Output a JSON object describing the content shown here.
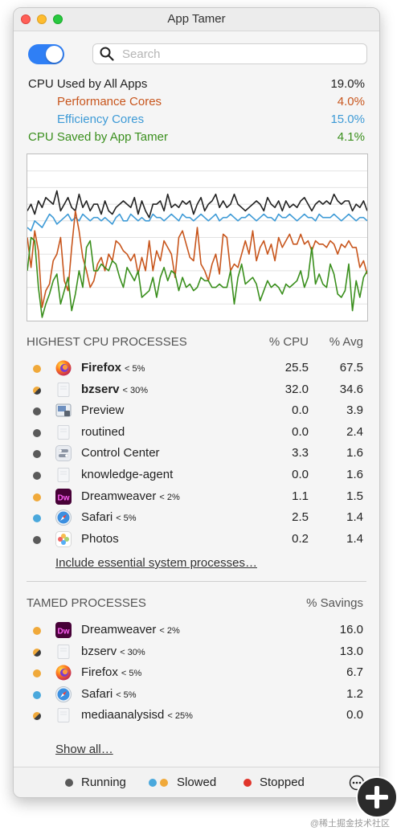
{
  "window": {
    "title": "App Tamer"
  },
  "search": {
    "placeholder": "Search"
  },
  "cpu_stats": {
    "all_apps": {
      "label": "CPU Used by All Apps",
      "value": "19.0%",
      "color": "#222222"
    },
    "performance": {
      "label": "Performance Cores",
      "value": "4.0%",
      "color": "#c8561d"
    },
    "efficiency": {
      "label": "Efficiency Cores",
      "value": "15.0%",
      "color": "#3d9ad6"
    },
    "saved": {
      "label": "CPU Saved by App Tamer",
      "value": "4.1%",
      "color": "#3a8f1d"
    }
  },
  "chart_data": {
    "type": "line",
    "series": [
      {
        "color": "#222222",
        "values": [
          66,
          70,
          64,
          72,
          68,
          74,
          72,
          70,
          78,
          66,
          70,
          74,
          68,
          66,
          76,
          68,
          72,
          66,
          70,
          70,
          64,
          72,
          66,
          64,
          68,
          70,
          72,
          70,
          68,
          74,
          64,
          72,
          66,
          62,
          70,
          70,
          72,
          66,
          76,
          68,
          70,
          68,
          72,
          70,
          72,
          64,
          70,
          74,
          66,
          70,
          72,
          76,
          68,
          72,
          68,
          70,
          76,
          70,
          68,
          66,
          68,
          70,
          72,
          70,
          66,
          74,
          70,
          68,
          72,
          66,
          72,
          68,
          70,
          68,
          72,
          74,
          70,
          66,
          70,
          72,
          70,
          72,
          70,
          76,
          72,
          70,
          72,
          72,
          66,
          70,
          68,
          72,
          66
        ]
      },
      {
        "color": "#3d9ad6",
        "values": [
          56,
          54,
          60,
          58,
          56,
          60,
          64,
          62,
          58,
          60,
          62,
          64,
          60,
          62,
          60,
          64,
          62,
          60,
          62,
          62,
          60,
          62,
          60,
          58,
          62,
          64,
          60,
          60,
          64,
          62,
          60,
          62,
          60,
          60,
          64,
          62,
          62,
          60,
          62,
          64,
          62,
          60,
          64,
          62,
          62,
          60,
          62,
          64,
          62,
          60,
          62,
          64,
          60,
          62,
          62,
          64,
          62,
          60,
          62,
          62,
          64,
          62,
          60,
          62,
          64,
          62,
          62,
          60,
          64,
          62,
          62,
          64,
          62,
          60,
          62,
          64,
          62,
          62,
          60,
          64,
          62,
          62,
          62,
          64,
          62,
          60,
          62,
          64,
          62,
          60,
          62,
          62,
          60
        ]
      },
      {
        "color": "#c8561d",
        "values": [
          50,
          32,
          54,
          42,
          8,
          18,
          22,
          36,
          40,
          50,
          24,
          18,
          44,
          66,
          54,
          38,
          30,
          20,
          24,
          34,
          38,
          30,
          40,
          36,
          48,
          46,
          42,
          40,
          36,
          40,
          28,
          38,
          30,
          48,
          30,
          42,
          36,
          48,
          44,
          40,
          26,
          50,
          54,
          46,
          38,
          36,
          56,
          34,
          30,
          24,
          34,
          40,
          28,
          52,
          50,
          30,
          34,
          32,
          40,
          48,
          40,
          54,
          36,
          44,
          48,
          40,
          46,
          36,
          50,
          44,
          48,
          52,
          46,
          46,
          52,
          46,
          48,
          42,
          48,
          46,
          46,
          44,
          48,
          46,
          40,
          46,
          44,
          48,
          44,
          44,
          32,
          36,
          28
        ]
      },
      {
        "color": "#3a8f1d",
        "values": [
          30,
          50,
          48,
          20,
          2,
          10,
          16,
          24,
          28,
          10,
          18,
          26,
          6,
          16,
          30,
          20,
          44,
          48,
          30,
          30,
          34,
          32,
          30,
          36,
          34,
          26,
          20,
          32,
          28,
          24,
          30,
          14,
          16,
          18,
          26,
          14,
          26,
          32,
          24,
          30,
          28,
          18,
          26,
          20,
          22,
          18,
          20,
          26,
          24,
          24,
          20,
          20,
          22,
          20,
          20,
          30,
          10,
          26,
          34,
          22,
          24,
          26,
          22,
          12,
          18,
          24,
          20,
          22,
          20,
          16,
          22,
          20,
          22,
          24,
          30,
          20,
          26,
          44,
          22,
          28,
          22,
          20,
          34,
          28,
          16,
          14,
          18,
          34,
          6,
          24,
          14,
          26,
          30
        ]
      }
    ],
    "ylim": [
      0,
      100
    ],
    "grid": true
  },
  "highest_cpu": {
    "header": "HIGHEST CPU PROCESSES",
    "col_cpu": "% CPU",
    "col_avg": "% Avg",
    "rows": [
      {
        "name": "Firefox",
        "limit": "< 5%",
        "cpu": "25.5",
        "avg": "67.5",
        "bold": true,
        "status": "slowed-orange",
        "icon": "firefox-icon"
      },
      {
        "name": "bzserv",
        "limit": "< 30%",
        "cpu": "32.0",
        "avg": "34.6",
        "bold": true,
        "status": "mixed",
        "icon": "generic-app-icon"
      },
      {
        "name": "Preview",
        "limit": "",
        "cpu": "0.0",
        "avg": "3.9",
        "bold": false,
        "status": "running",
        "icon": "preview-icon"
      },
      {
        "name": "routined",
        "limit": "",
        "cpu": "0.0",
        "avg": "2.4",
        "bold": false,
        "status": "running",
        "icon": "generic-app-icon"
      },
      {
        "name": "Control Center",
        "limit": "",
        "cpu": "3.3",
        "avg": "1.6",
        "bold": false,
        "status": "running",
        "icon": "control-center-icon"
      },
      {
        "name": "knowledge-agent",
        "limit": "",
        "cpu": "0.0",
        "avg": "1.6",
        "bold": false,
        "status": "running",
        "icon": "generic-app-icon"
      },
      {
        "name": "Dreamweaver",
        "limit": "< 2%",
        "cpu": "1.1",
        "avg": "1.5",
        "bold": false,
        "status": "slowed-orange",
        "icon": "dreamweaver-icon"
      },
      {
        "name": "Safari",
        "limit": "< 5%",
        "cpu": "2.5",
        "avg": "1.4",
        "bold": false,
        "status": "slowed-blue",
        "icon": "safari-icon"
      },
      {
        "name": "Photos",
        "limit": "",
        "cpu": "0.2",
        "avg": "1.4",
        "bold": false,
        "status": "running",
        "icon": "photos-icon"
      }
    ],
    "include_link": "Include essential system processes…"
  },
  "tamed": {
    "header": "TAMED PROCESSES",
    "col_savings": "% Savings",
    "rows": [
      {
        "name": "Dreamweaver",
        "limit": "< 2%",
        "savings": "16.0",
        "status": "slowed-orange",
        "icon": "dreamweaver-icon"
      },
      {
        "name": "bzserv",
        "limit": "< 30%",
        "savings": "13.0",
        "status": "mixed",
        "icon": "generic-app-icon"
      },
      {
        "name": "Firefox",
        "limit": "< 5%",
        "savings": "6.7",
        "status": "slowed-orange",
        "icon": "firefox-icon"
      },
      {
        "name": "Safari",
        "limit": "< 5%",
        "savings": "1.2",
        "status": "slowed-blue",
        "icon": "safari-icon"
      },
      {
        "name": "mediaanalysisd",
        "limit": "< 25%",
        "savings": "0.0",
        "status": "mixed",
        "icon": "generic-app-icon"
      }
    ],
    "show_all_link": "Show all…"
  },
  "legend": {
    "running": "Running",
    "slowed": "Slowed",
    "stopped": "Stopped",
    "colors": {
      "running": "#5a5a5a",
      "slowed_blue": "#4aa8dc",
      "slowed_orange": "#f0a93a",
      "stopped": "#e0352b"
    }
  },
  "watermark": "@稀土掘金技术社区"
}
